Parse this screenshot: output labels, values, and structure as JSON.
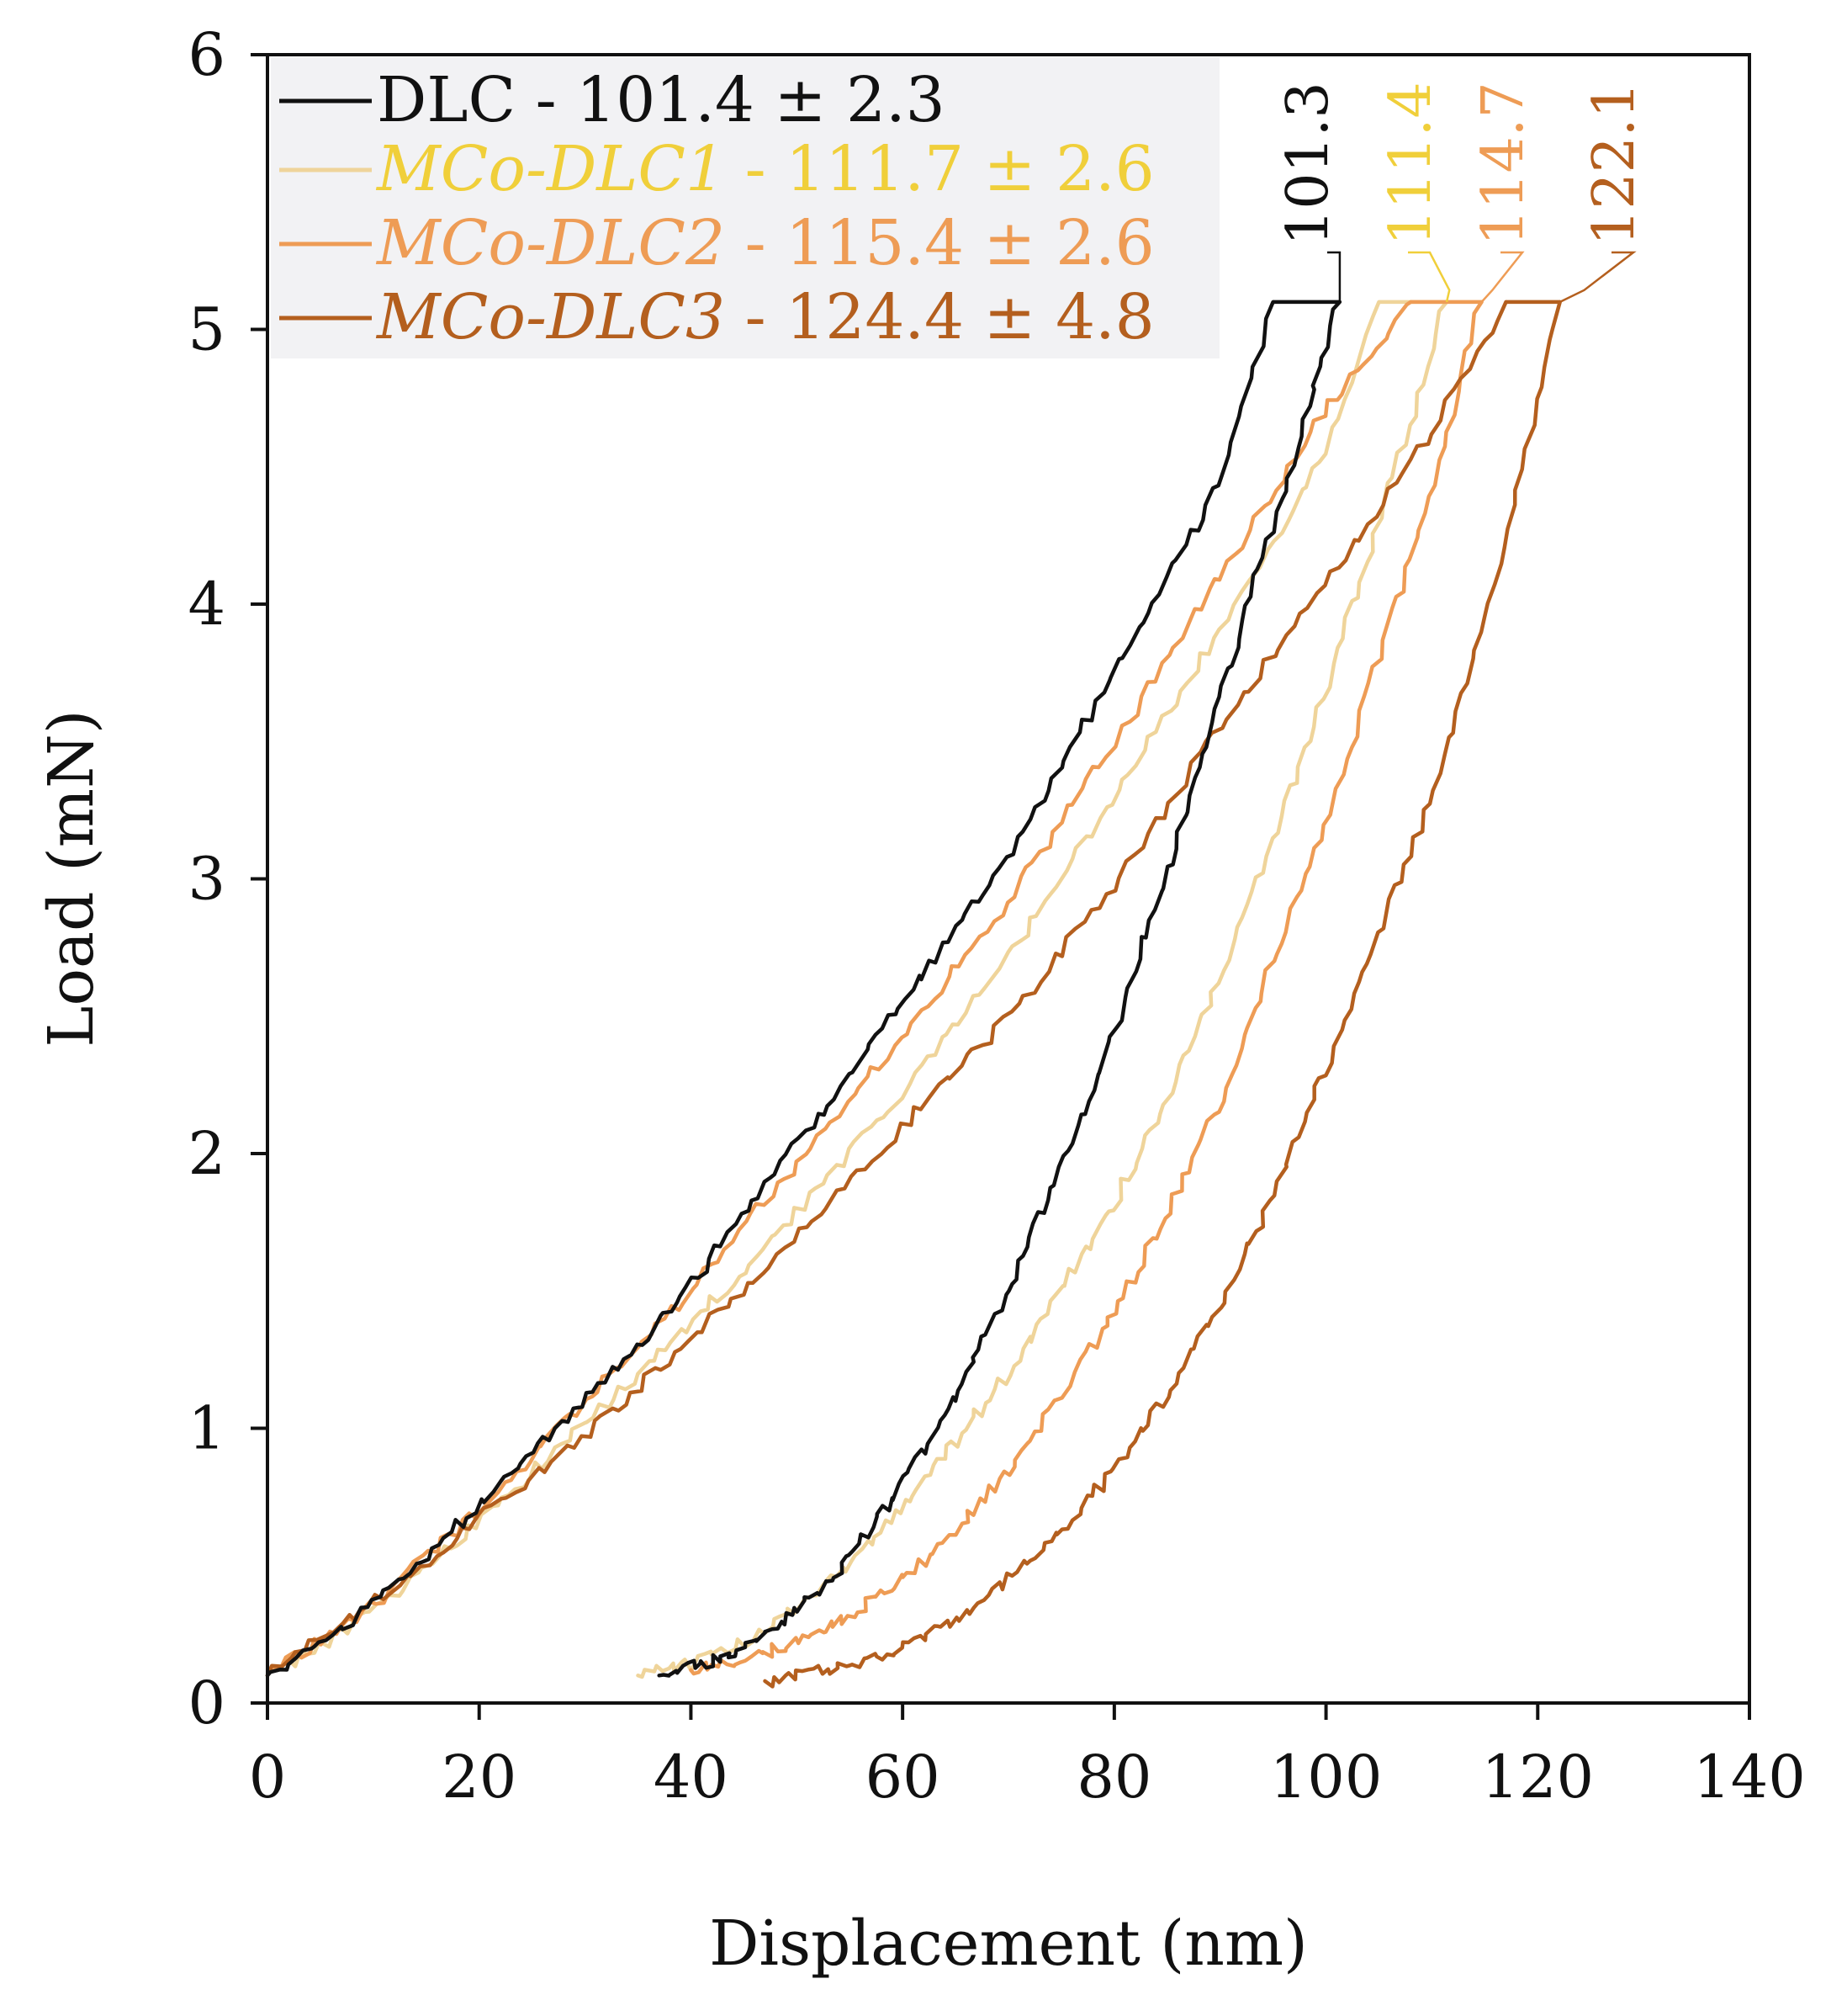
{
  "chart_data": {
    "type": "line",
    "title": "",
    "xlabel": "Displacement (nm)",
    "ylabel": "Load (mN)",
    "xlim": [
      0,
      140
    ],
    "ylim": [
      0,
      6
    ],
    "xticks": [
      "0",
      "20",
      "40",
      "60",
      "80",
      "100",
      "120",
      "140"
    ],
    "yticks": [
      "0",
      "1",
      "2",
      "3",
      "4",
      "5",
      "6"
    ],
    "grid": false,
    "legend_position": "top-left",
    "max_load": 5.1,
    "series": [
      {
        "name": "DLC",
        "legend_prefix": "DLC",
        "legend_suffix": " - 101.4 ± 2.3",
        "color": "#111111",
        "max_depth": 101.3,
        "peak_label": "101.3",
        "loading": [
          [
            0,
            0.1
          ],
          [
            10,
            0.36
          ],
          [
            20,
            0.72
          ],
          [
            30,
            1.1
          ],
          [
            40,
            1.52
          ],
          [
            50,
            2.03
          ],
          [
            60,
            2.55
          ],
          [
            70,
            3.08
          ],
          [
            80,
            3.75
          ],
          [
            90,
            4.45
          ],
          [
            95,
            5.1
          ]
        ],
        "unloading": [
          [
            101.3,
            5.1
          ],
          [
            95,
            4.3
          ],
          [
            90,
            3.65
          ],
          [
            85,
            3.02
          ],
          [
            80,
            2.45
          ],
          [
            75,
            1.95
          ],
          [
            70,
            1.5
          ],
          [
            65,
            1.12
          ],
          [
            60,
            0.8
          ],
          [
            55,
            0.52
          ],
          [
            50,
            0.33
          ],
          [
            45,
            0.2
          ],
          [
            40,
            0.13
          ],
          [
            37,
            0.1
          ]
        ]
      },
      {
        "name": "MCo-DLC1",
        "legend_prefix": "MCo-DLC1",
        "legend_suffix": " - 111.7 ± 2.6",
        "color": "#f0cf3a",
        "line_color": "#efd49a",
        "max_depth": 111.4,
        "peak_label": "111.4",
        "loading": [
          [
            0,
            0.1
          ],
          [
            10,
            0.33
          ],
          [
            20,
            0.66
          ],
          [
            30,
            1.02
          ],
          [
            40,
            1.38
          ],
          [
            50,
            1.78
          ],
          [
            60,
            2.22
          ],
          [
            70,
            2.72
          ],
          [
            80,
            3.3
          ],
          [
            90,
            3.9
          ],
          [
            100,
            4.55
          ],
          [
            105,
            5.1
          ]
        ],
        "unloading": [
          [
            111.4,
            5.1
          ],
          [
            105,
            4.3
          ],
          [
            100,
            3.7
          ],
          [
            95,
            3.15
          ],
          [
            90,
            2.65
          ],
          [
            85,
            2.2
          ],
          [
            80,
            1.82
          ],
          [
            75,
            1.5
          ],
          [
            70,
            1.2
          ],
          [
            65,
            0.95
          ],
          [
            60,
            0.72
          ],
          [
            55,
            0.5
          ],
          [
            50,
            0.34
          ],
          [
            45,
            0.22
          ],
          [
            40,
            0.14
          ],
          [
            35,
            0.1
          ]
        ]
      },
      {
        "name": "MCo-DLC2",
        "legend_prefix": "MCo-DLC2",
        "legend_suffix": " - 115.4 ± 2.6",
        "color": "#ee9c55",
        "max_depth": 114.7,
        "peak_label": "114.7",
        "loading": [
          [
            0,
            0.1
          ],
          [
            10,
            0.36
          ],
          [
            20,
            0.7
          ],
          [
            30,
            1.1
          ],
          [
            40,
            1.5
          ],
          [
            50,
            1.96
          ],
          [
            60,
            2.42
          ],
          [
            70,
            2.92
          ],
          [
            80,
            3.5
          ],
          [
            90,
            4.1
          ],
          [
            100,
            4.7
          ],
          [
            108,
            5.1
          ]
        ],
        "unloading": [
          [
            114.7,
            5.1
          ],
          [
            110,
            4.4
          ],
          [
            105,
            3.8
          ],
          [
            100,
            3.2
          ],
          [
            95,
            2.7
          ],
          [
            90,
            2.2
          ],
          [
            85,
            1.78
          ],
          [
            80,
            1.42
          ],
          [
            75,
            1.12
          ],
          [
            70,
            0.86
          ],
          [
            65,
            0.62
          ],
          [
            60,
            0.45
          ],
          [
            55,
            0.32
          ],
          [
            50,
            0.22
          ],
          [
            45,
            0.15
          ],
          [
            40,
            0.12
          ]
        ]
      },
      {
        "name": "MCo-DLC3",
        "legend_prefix": "MCo-DLC3",
        "legend_suffix": " - 124.4 ± 4.8",
        "color": "#b45f1e",
        "max_depth": 122.1,
        "peak_label": "122.1",
        "loading": [
          [
            0,
            0.1
          ],
          [
            10,
            0.36
          ],
          [
            20,
            0.68
          ],
          [
            30,
            0.98
          ],
          [
            40,
            1.32
          ],
          [
            50,
            1.7
          ],
          [
            60,
            2.1
          ],
          [
            70,
            2.5
          ],
          [
            80,
            2.98
          ],
          [
            90,
            3.55
          ],
          [
            100,
            4.08
          ],
          [
            110,
            4.62
          ],
          [
            117,
            5.1
          ]
        ],
        "unloading": [
          [
            122.1,
            5.1
          ],
          [
            118,
            4.4
          ],
          [
            115,
            3.95
          ],
          [
            110,
            3.3
          ],
          [
            105,
            2.8
          ],
          [
            100,
            2.3
          ],
          [
            95,
            1.85
          ],
          [
            90,
            1.45
          ],
          [
            85,
            1.12
          ],
          [
            80,
            0.85
          ],
          [
            75,
            0.62
          ],
          [
            70,
            0.45
          ],
          [
            65,
            0.3
          ],
          [
            60,
            0.2
          ],
          [
            55,
            0.14
          ],
          [
            50,
            0.1
          ],
          [
            47,
            0.08
          ]
        ]
      }
    ]
  }
}
